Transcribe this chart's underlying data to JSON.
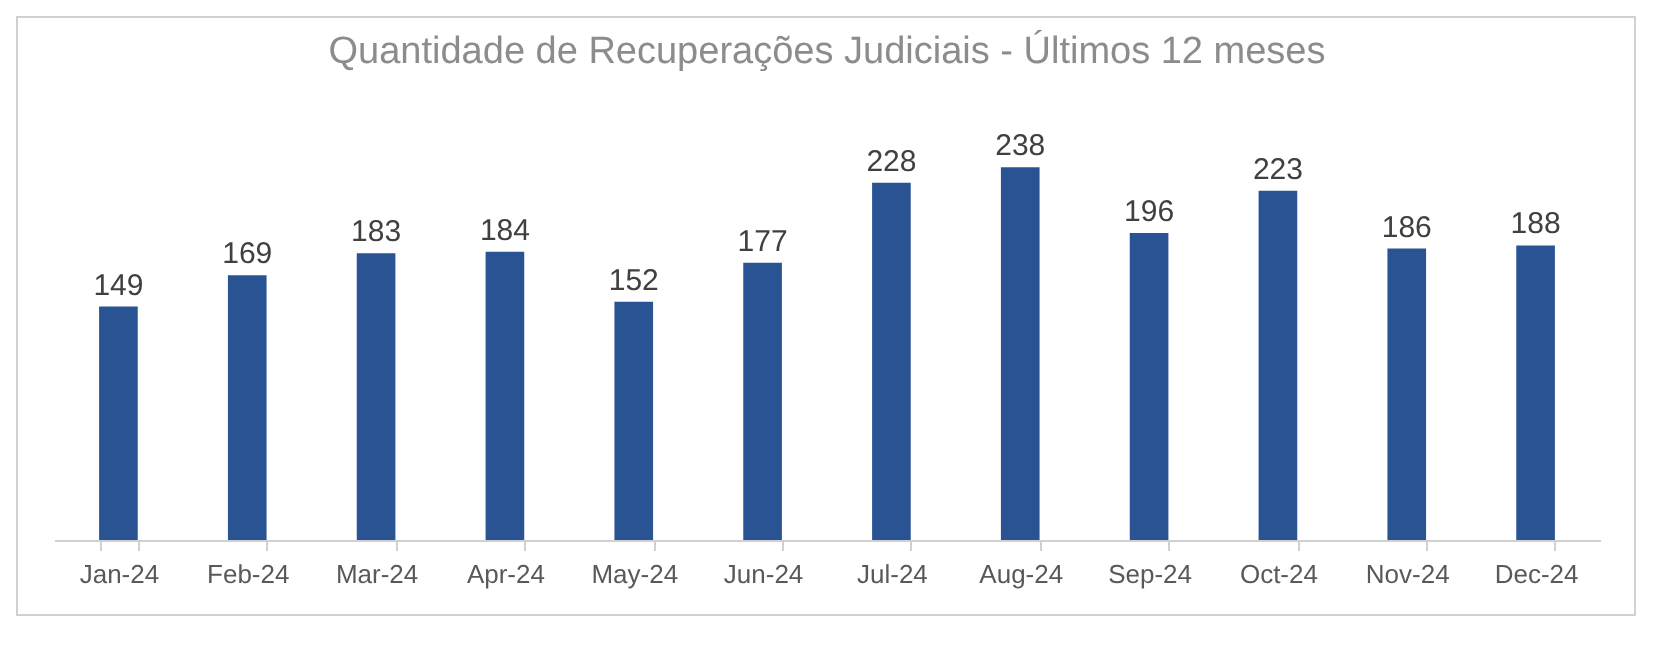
{
  "chart_data": {
    "type": "bar",
    "title": "Quantidade de Recuperações Judiciais - Últimos 12 meses",
    "categories": [
      "Jan-24",
      "Feb-24",
      "Mar-24",
      "Apr-24",
      "May-24",
      "Jun-24",
      "Jul-24",
      "Aug-24",
      "Sep-24",
      "Oct-24",
      "Nov-24",
      "Dec-24"
    ],
    "values": [
      149,
      169,
      183,
      184,
      152,
      177,
      228,
      238,
      196,
      223,
      186,
      188
    ],
    "color": "#2a5394",
    "data_labels": true,
    "grid": false
  }
}
